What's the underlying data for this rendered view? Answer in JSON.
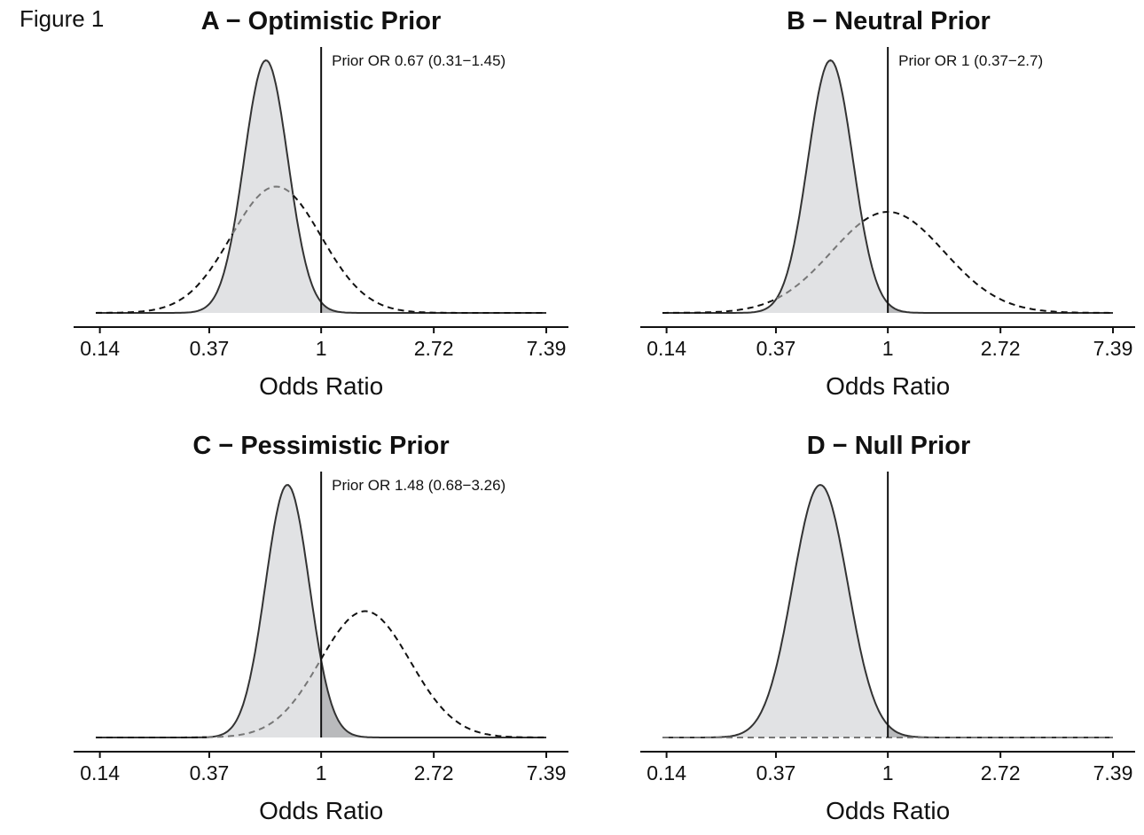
{
  "figure_label": "Figure 1",
  "chart_data": [
    {
      "type": "area",
      "title": "A − Optimistic Prior",
      "xlabel": "Odds Ratio",
      "ylabel": "",
      "x_scale": "log",
      "x_ticks": [
        "0.14",
        "0.37",
        "1",
        "2.72",
        "7.39"
      ],
      "x_tick_values": [
        0.14,
        0.37,
        1,
        2.72,
        7.39
      ],
      "xlim": [
        0.135,
        7.39
      ],
      "reference_line": 1,
      "annotation": "Prior OR 0.67 (0.31−1.45)",
      "series": [
        {
          "style": "solid-filled",
          "odds_ratio_peak": 0.61,
          "log_or_mean": -0.49,
          "log_or_sd": 0.195,
          "peak_height": 1.0
        },
        {
          "style": "dashed",
          "odds_ratio_peak": 0.67,
          "log_or_mean": -0.4,
          "log_or_sd": 0.4,
          "peak_height": 0.5
        }
      ]
    },
    {
      "type": "area",
      "title": "B − Neutral Prior",
      "xlabel": "Odds Ratio",
      "ylabel": "",
      "x_scale": "log",
      "x_ticks": [
        "0.14",
        "0.37",
        "1",
        "2.72",
        "7.39"
      ],
      "x_tick_values": [
        0.14,
        0.37,
        1,
        2.72,
        7.39
      ],
      "xlim": [
        0.135,
        7.39
      ],
      "reference_line": 1,
      "annotation": "Prior OR 1 (0.37−2.7)",
      "series": [
        {
          "style": "solid-filled",
          "odds_ratio_peak": 0.6,
          "log_or_mean": -0.51,
          "log_or_sd": 0.2,
          "peak_height": 1.0
        },
        {
          "style": "dashed",
          "odds_ratio_peak": 1.0,
          "log_or_mean": 0.0,
          "log_or_sd": 0.5,
          "peak_height": 0.4
        }
      ]
    },
    {
      "type": "area",
      "title": "C − Pessimistic Prior",
      "xlabel": "Odds Ratio",
      "ylabel": "",
      "x_scale": "log",
      "x_ticks": [
        "0.14",
        "0.37",
        "1",
        "2.72",
        "7.39"
      ],
      "x_tick_values": [
        0.14,
        0.37,
        1,
        2.72,
        7.39
      ],
      "xlim": [
        0.135,
        7.39
      ],
      "reference_line": 1,
      "annotation": "Prior OR 1.48 (0.68−3.26)",
      "series": [
        {
          "style": "solid-filled",
          "odds_ratio_peak": 0.74,
          "log_or_mean": -0.3,
          "log_or_sd": 0.195,
          "peak_height": 1.0
        },
        {
          "style": "dashed",
          "odds_ratio_peak": 1.48,
          "log_or_mean": 0.39,
          "log_or_sd": 0.4,
          "peak_height": 0.5
        }
      ]
    },
    {
      "type": "area",
      "title": "D − Null Prior",
      "xlabel": "Odds Ratio",
      "ylabel": "",
      "x_scale": "log",
      "x_ticks": [
        "0.14",
        "0.37",
        "1",
        "2.72",
        "7.39"
      ],
      "x_tick_values": [
        0.14,
        0.37,
        1,
        2.72,
        7.39
      ],
      "xlim": [
        0.135,
        7.39
      ],
      "reference_line": 1,
      "annotation": "",
      "series": [
        {
          "style": "solid-filled",
          "odds_ratio_peak": 0.55,
          "log_or_mean": -0.6,
          "log_or_sd": 0.245,
          "peak_height": 1.0
        },
        {
          "style": "dashed",
          "odds_ratio_peak": null,
          "log_or_mean": 0.0,
          "log_or_sd": 100,
          "peak_height": 0.0
        }
      ]
    }
  ],
  "colors": {
    "fill": "#e1e2e4",
    "fill_dark": "#b9babc",
    "line": "#333333",
    "dashed_dark": "#111111",
    "dashed_light": "#777777"
  }
}
